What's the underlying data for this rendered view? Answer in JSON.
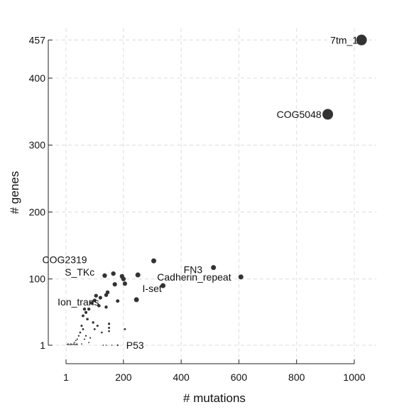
{
  "chart_data": {
    "type": "scatter",
    "title": "",
    "xlabel": "# mutations",
    "ylabel": "# genes",
    "xlim": [
      1,
      1030
    ],
    "ylim": [
      1,
      457
    ],
    "xticks": [
      1,
      200,
      400,
      600,
      800,
      1000
    ],
    "xtick_labels": [
      "1",
      "200",
      "400",
      "600",
      "800",
      "1000"
    ],
    "yticks": [
      1,
      100,
      200,
      300,
      400,
      457
    ],
    "ytick_labels": [
      "1",
      "100",
      "200",
      "300",
      "400",
      "457"
    ],
    "grid": true,
    "labeled_points": [
      {
        "label": "7tm_1",
        "x": 1025,
        "y": 457
      },
      {
        "label": "COG5048",
        "x": 908,
        "y": 346
      },
      {
        "label": "COG2319",
        "x": 305,
        "y": 127
      },
      {
        "label": "FN3",
        "x": 512,
        "y": 117
      },
      {
        "label": "S_TKc",
        "x": 250,
        "y": 106
      },
      {
        "label": "Cadherin_repeat",
        "x": 607,
        "y": 103
      },
      {
        "label": "I-set",
        "x": 337,
        "y": 90
      },
      {
        "label": "Ion_trans",
        "x": 245,
        "y": 69
      },
      {
        "label": "P53",
        "x": 180,
        "y": 1
      }
    ],
    "points": [
      {
        "x": 135,
        "y": 105
      },
      {
        "x": 165,
        "y": 108
      },
      {
        "x": 200,
        "y": 100
      },
      {
        "x": 205,
        "y": 93
      },
      {
        "x": 195,
        "y": 104
      },
      {
        "x": 170,
        "y": 92
      },
      {
        "x": 145,
        "y": 80
      },
      {
        "x": 140,
        "y": 76
      },
      {
        "x": 105,
        "y": 75
      },
      {
        "x": 120,
        "y": 72
      },
      {
        "x": 100,
        "y": 68
      },
      {
        "x": 90,
        "y": 64
      },
      {
        "x": 115,
        "y": 60
      },
      {
        "x": 140,
        "y": 58
      },
      {
        "x": 180,
        "y": 67
      },
      {
        "x": 65,
        "y": 55
      },
      {
        "x": 70,
        "y": 50
      },
      {
        "x": 80,
        "y": 55
      },
      {
        "x": 60,
        "y": 45
      },
      {
        "x": 75,
        "y": 40
      },
      {
        "x": 95,
        "y": 35
      },
      {
        "x": 110,
        "y": 30
      },
      {
        "x": 150,
        "y": 33
      },
      {
        "x": 150,
        "y": 27
      },
      {
        "x": 55,
        "y": 30
      },
      {
        "x": 60,
        "y": 25
      },
      {
        "x": 50,
        "y": 20
      },
      {
        "x": 45,
        "y": 15
      },
      {
        "x": 40,
        "y": 10
      },
      {
        "x": 35,
        "y": 8
      },
      {
        "x": 30,
        "y": 5
      },
      {
        "x": 70,
        "y": 15
      },
      {
        "x": 85,
        "y": 12
      },
      {
        "x": 100,
        "y": 25
      },
      {
        "x": 125,
        "y": 20
      },
      {
        "x": 205,
        "y": 25
      },
      {
        "x": 150,
        "y": 22
      },
      {
        "x": 65,
        "y": 10
      },
      {
        "x": 80,
        "y": 5
      },
      {
        "x": 55,
        "y": 3
      },
      {
        "x": 5,
        "y": 2
      },
      {
        "x": 10,
        "y": 2
      },
      {
        "x": 15,
        "y": 2
      },
      {
        "x": 20,
        "y": 2
      },
      {
        "x": 25,
        "y": 2
      },
      {
        "x": 30,
        "y": 2
      },
      {
        "x": 35,
        "y": 2
      },
      {
        "x": 40,
        "y": 2
      },
      {
        "x": 8,
        "y": 3
      },
      {
        "x": 18,
        "y": 3
      },
      {
        "x": 28,
        "y": 3
      },
      {
        "x": 38,
        "y": 3
      },
      {
        "x": 130,
        "y": 1
      },
      {
        "x": 140,
        "y": 1
      },
      {
        "x": 160,
        "y": 1
      }
    ]
  }
}
